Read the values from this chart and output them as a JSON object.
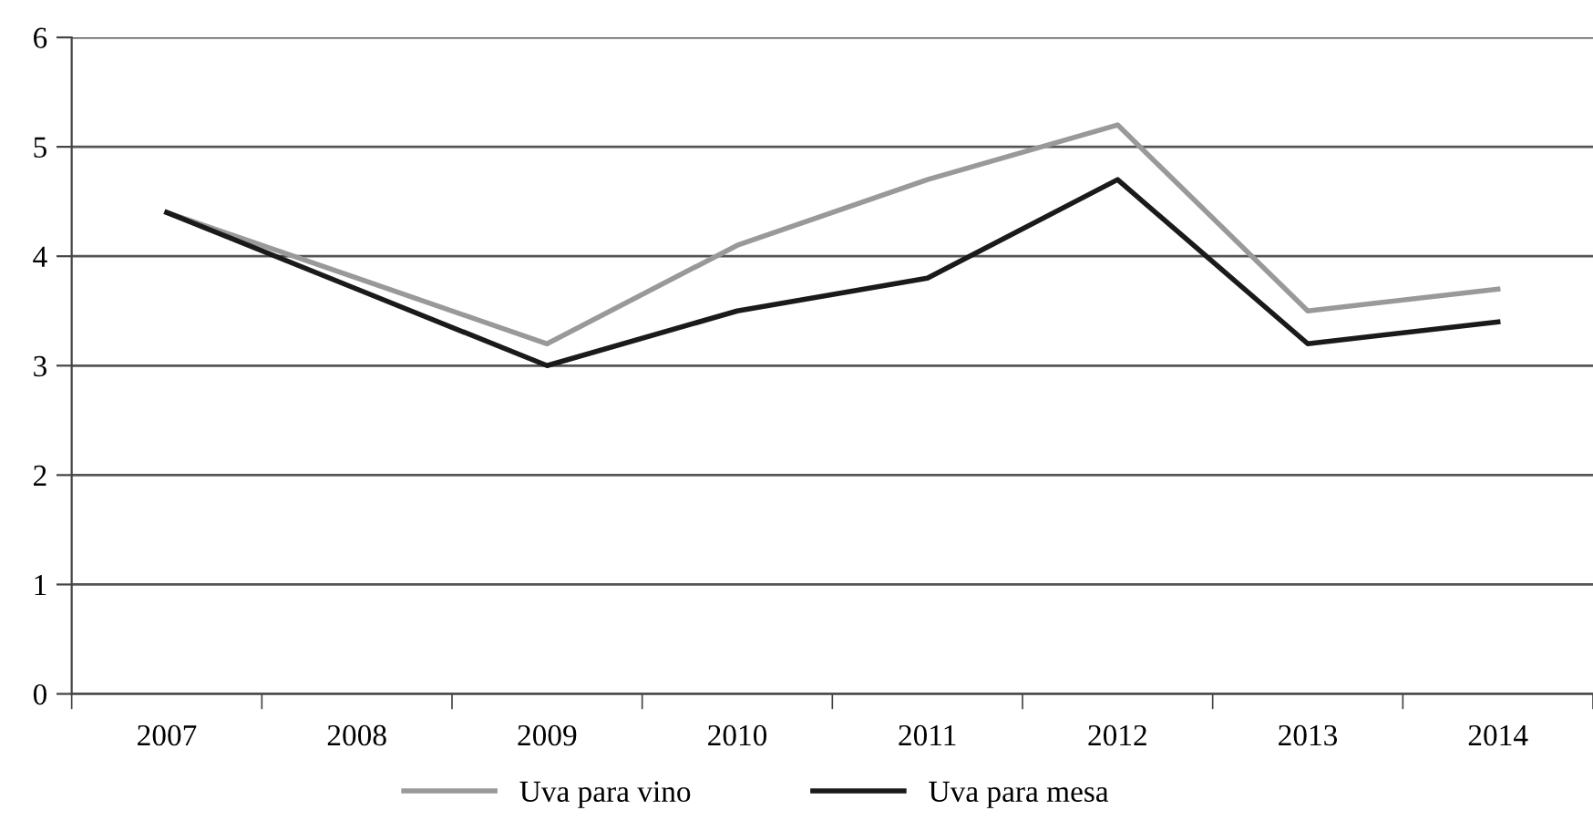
{
  "chart_data": {
    "type": "line",
    "categories": [
      "2007",
      "2008",
      "2009",
      "2010",
      "2011",
      "2012",
      "2013",
      "2014"
    ],
    "series": [
      {
        "name": "Uva para vino",
        "color": "#999999",
        "values": [
          4.4,
          3.8,
          3.2,
          4.1,
          4.7,
          5.2,
          3.5,
          3.7
        ]
      },
      {
        "name": "Uva para mesa",
        "color": "#1a1a1a",
        "values": [
          4.4,
          3.7,
          3.0,
          3.5,
          3.8,
          4.7,
          3.2,
          3.4
        ]
      }
    ],
    "ylim": [
      0,
      6
    ],
    "yticks": [
      0,
      1,
      2,
      3,
      4,
      5,
      6
    ],
    "grid": "y",
    "legend": "bottom",
    "marker": "none",
    "line_style": "solid"
  }
}
